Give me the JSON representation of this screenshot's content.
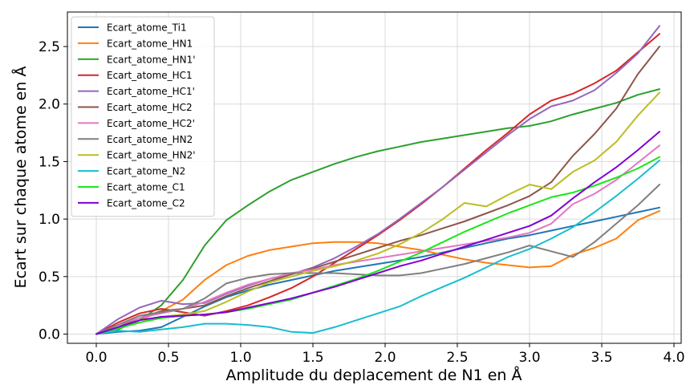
{
  "chart_data": {
    "type": "line",
    "title": "",
    "xlabel": "Amplitude du deplacement de N1 en Å",
    "ylabel": "Ecart sur chaque atome en Å",
    "xlim": [
      -0.2,
      4.05
    ],
    "ylim": [
      -0.08,
      2.8
    ],
    "xticks": [
      0.0,
      0.5,
      1.0,
      1.5,
      2.0,
      2.5,
      3.0,
      3.5,
      4.0
    ],
    "xtick_labels": [
      "0.0",
      "0.5",
      "1.0",
      "1.5",
      "2.0",
      "2.5",
      "3.0",
      "3.5",
      "4.0"
    ],
    "yticks": [
      0.0,
      0.5,
      1.0,
      1.5,
      2.0,
      2.5
    ],
    "ytick_labels": [
      "0.0",
      "0.5",
      "1.0",
      "1.5",
      "2.0",
      "2.5"
    ],
    "grid": true,
    "legend_position": "top-left",
    "x": [
      0.0,
      0.15,
      0.3,
      0.45,
      0.6,
      0.75,
      0.9,
      1.05,
      1.2,
      1.35,
      1.5,
      1.65,
      1.8,
      1.95,
      2.1,
      2.25,
      2.4,
      2.55,
      2.7,
      2.85,
      3.0,
      3.15,
      3.3,
      3.45,
      3.6,
      3.75,
      3.9
    ],
    "series": [
      {
        "name": "Ecart_atome_Ti1",
        "color": "#1f77b4",
        "values": [
          0.0,
          0.02,
          0.03,
          0.06,
          0.15,
          0.24,
          0.32,
          0.38,
          0.43,
          0.47,
          0.51,
          0.55,
          0.58,
          0.61,
          0.64,
          0.67,
          0.71,
          0.75,
          0.79,
          0.83,
          0.86,
          0.9,
          0.94,
          0.98,
          1.02,
          1.06,
          1.1
        ]
      },
      {
        "name": "Ecart_atome_HN1",
        "color": "#ff7f0e",
        "values": [
          0.0,
          0.05,
          0.12,
          0.2,
          0.3,
          0.47,
          0.6,
          0.68,
          0.73,
          0.76,
          0.79,
          0.8,
          0.8,
          0.79,
          0.76,
          0.73,
          0.69,
          0.65,
          0.62,
          0.6,
          0.58,
          0.59,
          0.69,
          0.75,
          0.83,
          0.99,
          1.07
        ]
      },
      {
        "name": "Ecart_atome_HN1'",
        "color": "#2ca02c",
        "values": [
          0.0,
          0.04,
          0.12,
          0.25,
          0.47,
          0.77,
          0.99,
          1.12,
          1.24,
          1.34,
          1.41,
          1.48,
          1.54,
          1.59,
          1.63,
          1.67,
          1.7,
          1.73,
          1.76,
          1.79,
          1.81,
          1.85,
          1.91,
          1.96,
          2.01,
          2.08,
          2.13
        ]
      },
      {
        "name": "Ecart_atome_HC1",
        "color": "#d62728",
        "values": [
          0.0,
          0.1,
          0.18,
          0.22,
          0.19,
          0.16,
          0.2,
          0.25,
          0.32,
          0.4,
          0.5,
          0.62,
          0.74,
          0.86,
          0.99,
          1.13,
          1.28,
          1.44,
          1.6,
          1.75,
          1.91,
          2.03,
          2.09,
          2.18,
          2.29,
          2.45,
          2.61
        ]
      },
      {
        "name": "Ecart_atome_HC1'",
        "color": "#9467bd",
        "values": [
          0.0,
          0.13,
          0.23,
          0.29,
          0.26,
          0.27,
          0.35,
          0.42,
          0.48,
          0.52,
          0.58,
          0.66,
          0.76,
          0.87,
          1.0,
          1.14,
          1.28,
          1.43,
          1.58,
          1.73,
          1.87,
          1.98,
          2.03,
          2.12,
          2.27,
          2.44,
          2.68
        ]
      },
      {
        "name": "Ecart_atome_HC2",
        "color": "#8c564b",
        "values": [
          0.0,
          0.06,
          0.14,
          0.2,
          0.22,
          0.25,
          0.33,
          0.4,
          0.46,
          0.52,
          0.57,
          0.63,
          0.69,
          0.75,
          0.81,
          0.86,
          0.92,
          0.98,
          1.05,
          1.12,
          1.2,
          1.32,
          1.55,
          1.74,
          1.96,
          2.26,
          2.5
        ]
      },
      {
        "name": "Ecart_atome_HC2'",
        "color": "#e377c2",
        "values": [
          0.0,
          0.08,
          0.14,
          0.18,
          0.22,
          0.28,
          0.36,
          0.43,
          0.48,
          0.53,
          0.56,
          0.6,
          0.63,
          0.66,
          0.69,
          0.72,
          0.75,
          0.78,
          0.81,
          0.84,
          0.88,
          0.96,
          1.13,
          1.22,
          1.34,
          1.49,
          1.64
        ]
      },
      {
        "name": "Ecart_atome_HN2",
        "color": "#7f7f7f",
        "values": [
          0.0,
          0.08,
          0.16,
          0.19,
          0.22,
          0.31,
          0.44,
          0.49,
          0.52,
          0.53,
          0.53,
          0.53,
          0.52,
          0.51,
          0.51,
          0.53,
          0.57,
          0.61,
          0.66,
          0.71,
          0.77,
          0.72,
          0.67,
          0.8,
          0.96,
          1.12,
          1.3
        ]
      },
      {
        "name": "Ecart_atome_HN2'",
        "color": "#bcbd22",
        "values": [
          0.0,
          0.05,
          0.1,
          0.15,
          0.17,
          0.2,
          0.28,
          0.37,
          0.45,
          0.5,
          0.55,
          0.59,
          0.64,
          0.7,
          0.78,
          0.88,
          1.0,
          1.14,
          1.11,
          1.21,
          1.3,
          1.26,
          1.41,
          1.51,
          1.67,
          1.9,
          2.1
        ]
      },
      {
        "name": "Ecart_atome_N2",
        "color": "#17becf",
        "values": [
          0.0,
          0.03,
          0.02,
          0.04,
          0.06,
          0.09,
          0.09,
          0.08,
          0.06,
          0.02,
          0.01,
          0.06,
          0.12,
          0.18,
          0.24,
          0.33,
          0.41,
          0.49,
          0.58,
          0.67,
          0.74,
          0.83,
          0.93,
          1.06,
          1.2,
          1.35,
          1.51
        ]
      },
      {
        "name": "Ecart_atome_C1",
        "color": "#1ae61a",
        "values": [
          0.0,
          0.05,
          0.1,
          0.14,
          0.16,
          0.17,
          0.19,
          0.22,
          0.26,
          0.3,
          0.36,
          0.42,
          0.48,
          0.55,
          0.63,
          0.71,
          0.8,
          0.89,
          0.97,
          1.05,
          1.12,
          1.19,
          1.23,
          1.29,
          1.36,
          1.44,
          1.54
        ]
      },
      {
        "name": "Ecart_atome_C2",
        "color": "#7f00d4",
        "values": [
          0.0,
          0.06,
          0.12,
          0.15,
          0.16,
          0.17,
          0.19,
          0.23,
          0.27,
          0.31,
          0.36,
          0.41,
          0.47,
          0.53,
          0.59,
          0.64,
          0.7,
          0.76,
          0.82,
          0.88,
          0.94,
          1.03,
          1.18,
          1.32,
          1.45,
          1.6,
          1.76
        ]
      }
    ]
  }
}
